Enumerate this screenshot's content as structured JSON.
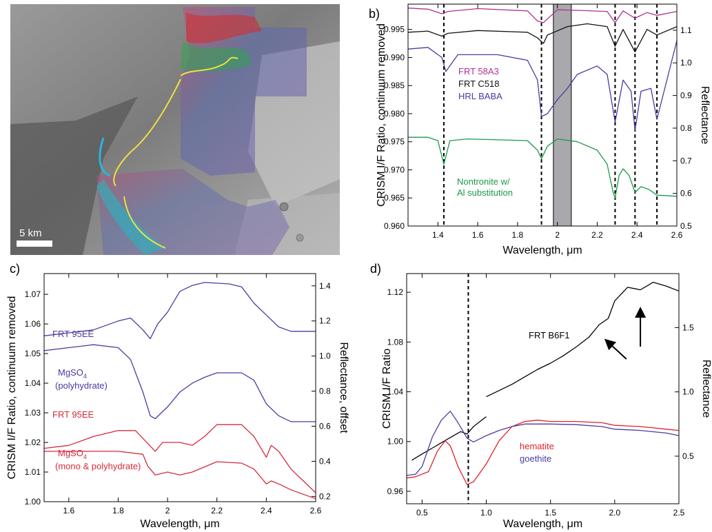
{
  "panels": {
    "a": {
      "label": "a)",
      "scalebar": "5 km"
    },
    "b": {
      "label": "b)"
    },
    "c": {
      "label": "c)"
    },
    "d": {
      "label": "d)"
    }
  },
  "chart_data": [
    {
      "id": "b",
      "type": "line",
      "xlabel": "Wavelength, μm",
      "ylabel": "CRISM I/F Ratio, continuum removed",
      "y2label": "Reflectance",
      "xlim": [
        1.25,
        2.6
      ],
      "ylim": [
        0.96,
        0.9995
      ],
      "y2lim": [
        0.5,
        1.18
      ],
      "xticks": [
        1.4,
        1.6,
        1.8,
        2,
        2.2,
        2.4,
        2.6
      ],
      "yticks": [
        0.96,
        0.965,
        0.97,
        0.975,
        0.98,
        0.985,
        0.99,
        0.995
      ],
      "y2ticks": [
        0.5,
        0.6,
        0.7,
        0.8,
        0.9,
        1.0,
        1.1
      ],
      "dashed_lines_x": [
        1.43,
        1.92,
        2.29,
        2.39,
        2.5
      ],
      "shaded_band": [
        1.98,
        2.07
      ],
      "annotations": [
        {
          "text": "FRT 58A3",
          "color": "#b03090"
        },
        {
          "text": "FRT C518",
          "color": "#111111"
        },
        {
          "text": "HRL BABA",
          "color": "#4a3aa0"
        },
        {
          "text": "Nontronite w/",
          "color": "#1a9a4a"
        },
        {
          "text": "Al substitution",
          "color": "#1a9a4a"
        }
      ],
      "series": [
        {
          "name": "FRT 58A3",
          "color": "#b03090",
          "x": [
            1.25,
            1.35,
            1.42,
            1.45,
            1.6,
            1.85,
            1.9,
            1.93,
            2.0,
            2.1,
            2.25,
            2.29,
            2.33,
            2.39,
            2.45,
            2.5,
            2.6
          ],
          "y": [
            0.9988,
            0.9986,
            0.9978,
            0.9982,
            0.9987,
            0.9983,
            0.9965,
            0.9962,
            0.9985,
            0.9984,
            0.9982,
            0.9962,
            0.9983,
            0.997,
            0.998,
            0.9975,
            0.9982
          ]
        },
        {
          "name": "FRT C518",
          "color": "#111111",
          "x": [
            1.25,
            1.35,
            1.42,
            1.45,
            1.6,
            1.85,
            1.9,
            1.93,
            1.95,
            2.05,
            2.15,
            2.25,
            2.29,
            2.33,
            2.39,
            2.45,
            2.5,
            2.6
          ],
          "y": [
            0.9945,
            0.9947,
            0.9938,
            0.9943,
            0.9948,
            0.9945,
            0.9935,
            0.9925,
            0.994,
            0.9955,
            0.996,
            0.9955,
            0.992,
            0.995,
            0.991,
            0.995,
            0.994,
            0.9955
          ]
        },
        {
          "name": "HRL BABA",
          "color": "#4a3aa0",
          "x": [
            1.25,
            1.35,
            1.42,
            1.44,
            1.5,
            1.7,
            1.85,
            1.9,
            1.92,
            1.95,
            2.0,
            2.05,
            2.1,
            2.2,
            2.25,
            2.29,
            2.33,
            2.37,
            2.39,
            2.42,
            2.47,
            2.5,
            2.55,
            2.6
          ],
          "y": [
            0.9915,
            0.9918,
            0.99,
            0.9875,
            0.9905,
            0.9905,
            0.9895,
            0.986,
            0.9795,
            0.98,
            0.9825,
            0.9845,
            0.987,
            0.9885,
            0.987,
            0.9785,
            0.986,
            0.984,
            0.977,
            0.984,
            0.9845,
            0.979,
            0.986,
            0.993
          ]
        },
        {
          "name": "Nontronite w/ Al substitution",
          "color": "#1a9a4a",
          "x": [
            1.25,
            1.35,
            1.4,
            1.43,
            1.46,
            1.55,
            1.85,
            1.9,
            1.92,
            1.95,
            2.0,
            2.1,
            2.2,
            2.25,
            2.28,
            2.29,
            2.31,
            2.33,
            2.36,
            2.39,
            2.42,
            2.46,
            2.5,
            2.6
          ],
          "y": [
            0.9758,
            0.9758,
            0.9752,
            0.971,
            0.9752,
            0.9755,
            0.9752,
            0.9735,
            0.972,
            0.9742,
            0.9755,
            0.975,
            0.9735,
            0.971,
            0.966,
            0.965,
            0.969,
            0.9702,
            0.969,
            0.966,
            0.967,
            0.9665,
            0.9655,
            0.9653
          ]
        }
      ]
    },
    {
      "id": "c",
      "type": "line",
      "xlabel": "Wavelength, μm",
      "ylabel": "CRISM I/F Ratio, continuum removed",
      "y2label": "Reflectance, offset",
      "xlim": [
        1.5,
        2.6
      ],
      "ylim": [
        1.0,
        1.077
      ],
      "y2lim": [
        0.17,
        1.47
      ],
      "xticks": [
        1.6,
        1.8,
        2,
        2.2,
        2.4,
        2.6
      ],
      "yticks": [
        1.0,
        1.01,
        1.02,
        1.03,
        1.04,
        1.05,
        1.06,
        1.07
      ],
      "y2ticks": [
        0.2,
        0.4,
        0.6,
        0.8,
        1.0,
        1.2,
        1.4
      ],
      "annotations": [
        {
          "text": "FRT 95EE",
          "color": "#4a3aa0"
        },
        {
          "text": "MgSO",
          "sub": "4",
          "color": "#4a3aa0"
        },
        {
          "text": "(polyhydrate)",
          "color": "#4a3aa0"
        },
        {
          "text": "FRT 95EE",
          "color": "#d42a3a"
        },
        {
          "text": "MgSO",
          "sub": "4",
          "color": "#d42a3a"
        },
        {
          "text": "(mono & polyhydrate)",
          "color": "#d42a3a"
        }
      ],
      "series": [
        {
          "name": "FRT 95EE",
          "color": "#4a3aa0",
          "x": [
            1.5,
            1.6,
            1.7,
            1.8,
            1.85,
            1.9,
            1.93,
            1.96,
            2.0,
            2.05,
            2.1,
            2.15,
            2.25,
            2.3,
            2.35,
            2.4,
            2.45,
            2.5,
            2.55,
            2.6
          ],
          "y": [
            1.056,
            1.057,
            1.058,
            1.061,
            1.062,
            1.058,
            1.055,
            1.06,
            1.064,
            1.071,
            1.073,
            1.074,
            1.0735,
            1.0725,
            1.067,
            1.063,
            1.059,
            1.0575,
            1.0575,
            1.0575
          ]
        },
        {
          "name": "MgSO4 (polyhydrate)",
          "color": "#4a3aa0",
          "x": [
            1.5,
            1.6,
            1.7,
            1.8,
            1.85,
            1.9,
            1.93,
            1.95,
            2.0,
            2.05,
            2.1,
            2.15,
            2.2,
            2.3,
            2.35,
            2.4,
            2.45,
            2.5,
            2.6
          ],
          "y": [
            1.051,
            1.052,
            1.053,
            1.052,
            1.048,
            1.037,
            1.029,
            1.028,
            1.032,
            1.037,
            1.04,
            1.042,
            1.0435,
            1.0435,
            1.041,
            1.033,
            1.029,
            1.027,
            1.027
          ]
        },
        {
          "name": "FRT 95EE",
          "color": "#d42a3a",
          "x": [
            1.5,
            1.6,
            1.7,
            1.8,
            1.87,
            1.95,
            1.98,
            2.05,
            2.1,
            2.15,
            2.2,
            2.3,
            2.35,
            2.4,
            2.42,
            2.45,
            2.5,
            2.55,
            2.6
          ],
          "y": [
            1.018,
            1.019,
            1.022,
            1.024,
            1.024,
            1.017,
            1.02,
            1.02,
            1.019,
            1.022,
            1.026,
            1.026,
            1.022,
            1.015,
            1.019,
            1.017,
            1.011,
            1.007,
            1.003
          ]
        },
        {
          "name": "MgSO4 (mono & polyhydrate)",
          "color": "#d42a3a",
          "x": [
            1.5,
            1.6,
            1.7,
            1.8,
            1.9,
            1.92,
            1.95,
            2.0,
            2.05,
            2.1,
            2.2,
            2.3,
            2.35,
            2.4,
            2.42,
            2.45,
            2.5,
            2.55,
            2.6
          ],
          "y": [
            1.017,
            1.017,
            1.017,
            1.017,
            1.016,
            1.012,
            1.009,
            1.01,
            1.009,
            1.01,
            1.0135,
            1.013,
            1.011,
            1.006,
            1.007,
            1.006,
            1.004,
            1.0025,
            1.001
          ]
        }
      ]
    },
    {
      "id": "d",
      "type": "line",
      "xlabel": "Wavelength, μm",
      "ylabel": "CRISM I/F Ratio",
      "y2label": "Reflectance",
      "xlim": [
        0.38,
        2.5
      ],
      "ylim": [
        0.95,
        1.135
      ],
      "y2lim": [
        0.13,
        1.92
      ],
      "xticks": [
        0.5,
        1.0,
        1.5,
        2.0,
        2.5
      ],
      "yticks": [
        0.96,
        1.0,
        1.04,
        1.08,
        1.12
      ],
      "y2ticks": [
        0.5,
        1.0,
        1.5
      ],
      "dashed_lines_x": [
        0.86
      ],
      "annotations": [
        {
          "text": "FRT B6F1",
          "color": "#000000"
        },
        {
          "text": "hematite",
          "color": "#e0202a"
        },
        {
          "text": "goethite",
          "color": "#4a3aa0"
        }
      ],
      "arrows_x": [
        1.93,
        2.2
      ],
      "series": [
        {
          "name": "FRT B6F1 (short)",
          "color": "#000000",
          "x": [
            0.42,
            0.5,
            0.6,
            0.7,
            0.8,
            0.85,
            0.9,
            0.95,
            1.0
          ],
          "y": [
            0.985,
            0.99,
            0.996,
            1.002,
            1.008,
            1.006,
            1.012,
            1.016,
            1.02
          ]
        },
        {
          "name": "FRT B6F1",
          "color": "#000000",
          "x": [
            1.0,
            1.1,
            1.2,
            1.3,
            1.4,
            1.5,
            1.6,
            1.7,
            1.8,
            1.88,
            1.95,
            2.0,
            2.1,
            2.15,
            2.2,
            2.25,
            2.3,
            2.4,
            2.5
          ],
          "y": [
            1.036,
            1.041,
            1.046,
            1.052,
            1.058,
            1.063,
            1.069,
            1.076,
            1.084,
            1.094,
            1.099,
            1.113,
            1.124,
            1.123,
            1.122,
            1.125,
            1.128,
            1.125,
            1.121
          ]
        },
        {
          "name": "hematite",
          "color": "#e0202a",
          "x": [
            0.38,
            0.45,
            0.55,
            0.62,
            0.68,
            0.72,
            0.78,
            0.85,
            0.9,
            1.0,
            1.1,
            1.2,
            1.3,
            1.4,
            1.5,
            1.7,
            1.9,
            2.0,
            2.1,
            2.2,
            2.3,
            2.4,
            2.5
          ],
          "y": [
            0.33,
            0.34,
            0.38,
            0.54,
            0.62,
            0.58,
            0.42,
            0.28,
            0.3,
            0.44,
            0.62,
            0.73,
            0.77,
            0.78,
            0.77,
            0.77,
            0.76,
            0.74,
            0.735,
            0.73,
            0.72,
            0.71,
            0.7
          ]
        },
        {
          "name": "goethite",
          "color": "#4a3aa0",
          "x": [
            0.38,
            0.45,
            0.5,
            0.58,
            0.65,
            0.72,
            0.78,
            0.85,
            0.9,
            1.0,
            1.1,
            1.2,
            1.3,
            1.4,
            1.5,
            1.7,
            1.9,
            2.0,
            2.1,
            2.2,
            2.3,
            2.4,
            2.5
          ],
          "y": [
            0.35,
            0.36,
            0.42,
            0.65,
            0.78,
            0.85,
            0.76,
            0.64,
            0.61,
            0.66,
            0.7,
            0.73,
            0.75,
            0.75,
            0.75,
            0.745,
            0.73,
            0.71,
            0.705,
            0.7,
            0.69,
            0.68,
            0.66
          ]
        }
      ]
    }
  ]
}
